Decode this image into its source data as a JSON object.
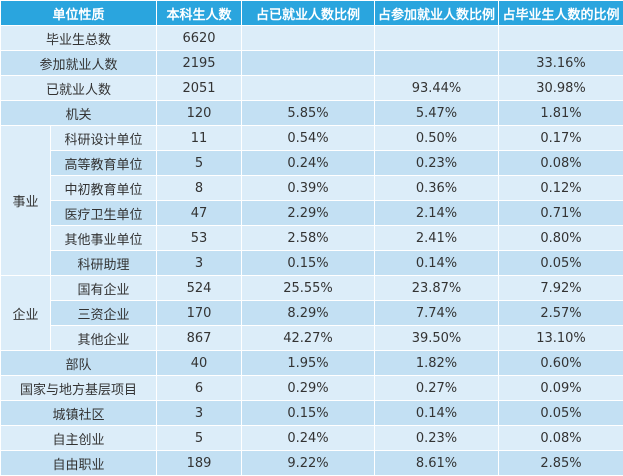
{
  "headers": [
    "单位性质",
    "本科生人数",
    "占已就业人数比例",
    "占参加就业人数比例",
    "占毕业生人数的比例"
  ],
  "rows": [
    {
      "label": "毕业生总数",
      "count": "6620",
      "p1": "",
      "p2": "",
      "p3": ""
    },
    {
      "label": "参加就业人数",
      "count": "2195",
      "p1": "",
      "p2": "",
      "p3": "33.16%"
    },
    {
      "label": "已就业人数",
      "count": "2051",
      "p1": "",
      "p2": "93.44%",
      "p3": "30.98%"
    },
    {
      "label": "机关",
      "count": "120",
      "p1": "5.85%",
      "p2": "5.47%",
      "p3": "1.81%"
    }
  ],
  "group1": {
    "label": "事业",
    "rows": [
      {
        "label": "科研设计单位",
        "count": "11",
        "p1": "0.54%",
        "p2": "0.50%",
        "p3": "0.17%"
      },
      {
        "label": "高等教育单位",
        "count": "5",
        "p1": "0.24%",
        "p2": "0.23%",
        "p3": "0.08%"
      },
      {
        "label": "中初教育单位",
        "count": "8",
        "p1": "0.39%",
        "p2": "0.36%",
        "p3": "0.12%"
      },
      {
        "label": "医疗卫生单位",
        "count": "47",
        "p1": "2.29%",
        "p2": "2.14%",
        "p3": "0.71%"
      },
      {
        "label": "其他事业单位",
        "count": "53",
        "p1": "2.58%",
        "p2": "2.41%",
        "p3": "0.80%"
      },
      {
        "label": "科研助理",
        "count": "3",
        "p1": "0.15%",
        "p2": "0.14%",
        "p3": "0.05%"
      }
    ]
  },
  "group2": {
    "label": "企业",
    "rows": [
      {
        "label": "国有企业",
        "count": "524",
        "p1": "25.55%",
        "p2": "23.87%",
        "p3": "7.92%"
      },
      {
        "label": "三资企业",
        "count": "170",
        "p1": "8.29%",
        "p2": "7.74%",
        "p3": "2.57%"
      },
      {
        "label": "其他企业",
        "count": "867",
        "p1": "42.27%",
        "p2": "39.50%",
        "p3": "13.10%"
      }
    ]
  },
  "tail": [
    {
      "label": "部队",
      "count": "40",
      "p1": "1.95%",
      "p2": "1.82%",
      "p3": "0.60%"
    },
    {
      "label": "国家与地方基层项目",
      "count": "6",
      "p1": "0.29%",
      "p2": "0.27%",
      "p3": "0.09%"
    },
    {
      "label": "城镇社区",
      "count": "3",
      "p1": "0.15%",
      "p2": "0.14%",
      "p3": "0.05%"
    },
    {
      "label": "自主创业",
      "count": "5",
      "p1": "0.24%",
      "p2": "0.23%",
      "p3": "0.08%"
    },
    {
      "label": "自由职业",
      "count": "189",
      "p1": "9.22%",
      "p2": "8.61%",
      "p3": "2.85%"
    }
  ]
}
